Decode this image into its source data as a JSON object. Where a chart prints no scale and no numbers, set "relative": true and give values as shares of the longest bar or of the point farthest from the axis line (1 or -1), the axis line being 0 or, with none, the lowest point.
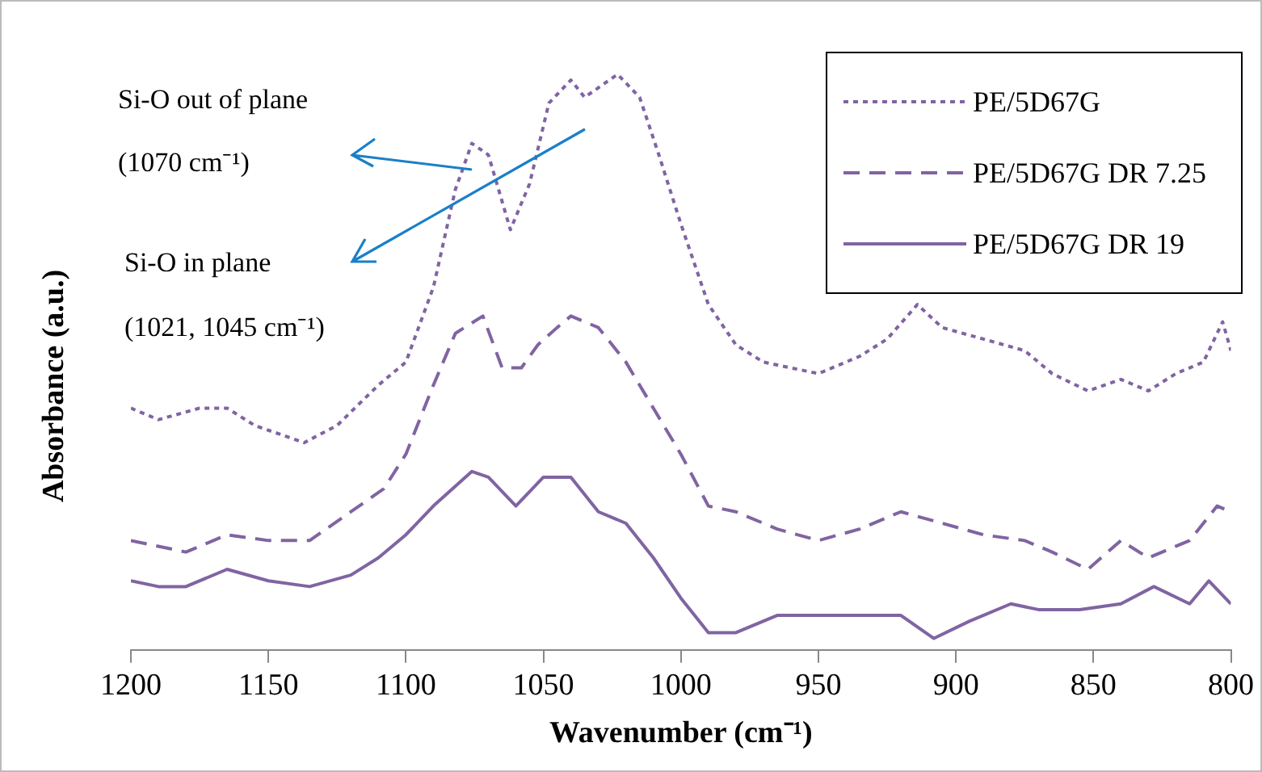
{
  "chart_data": {
    "type": "line",
    "relative": true,
    "xlabel": "Wavenumber (cm⁻¹)",
    "ylabel": "Absorbance (a.u.)",
    "xlim": [
      1200,
      800
    ],
    "xticks": [
      1200,
      1150,
      1100,
      1050,
      1000,
      950,
      900,
      850,
      800
    ],
    "grid": false,
    "marker": "none",
    "legend": "top right",
    "annotations": [
      "Si-O out of plane",
      "(1070 cm⁻¹)",
      "Si-O in plane",
      "(1021, 1045 cm⁻¹)"
    ],
    "series": [
      {
        "name": "PE/5D67G",
        "color": "#8064a2",
        "line_style": "dotted",
        "x": [
          1200,
          1190,
          1175,
          1165,
          1155,
          1137,
          1125,
          1110,
          1100,
          1090,
          1082,
          1076,
          1070,
          1062,
          1055,
          1048,
          1040,
          1035,
          1023,
          1015,
          1008,
          1000,
          990,
          980,
          970,
          960,
          950,
          935,
          925,
          914,
          905,
          890,
          875,
          865,
          852,
          840,
          830,
          820,
          810,
          803,
          800
        ],
        "values": [
          0.42,
          0.4,
          0.42,
          0.42,
          0.39,
          0.36,
          0.39,
          0.46,
          0.5,
          0.63,
          0.8,
          0.88,
          0.86,
          0.73,
          0.81,
          0.95,
          0.99,
          0.96,
          1.0,
          0.96,
          0.86,
          0.74,
          0.6,
          0.53,
          0.5,
          0.49,
          0.48,
          0.51,
          0.54,
          0.6,
          0.56,
          0.54,
          0.52,
          0.48,
          0.45,
          0.47,
          0.45,
          0.48,
          0.5,
          0.57,
          0.52
        ]
      },
      {
        "name": "PE/5D67G DR 7.25",
        "color": "#8064a2",
        "line_style": "dashed",
        "x": [
          1200,
          1190,
          1180,
          1165,
          1150,
          1135,
          1120,
          1108,
          1100,
          1090,
          1082,
          1072,
          1065,
          1058,
          1052,
          1045,
          1040,
          1030,
          1020,
          1010,
          1000,
          990,
          980,
          965,
          950,
          935,
          920,
          905,
          890,
          875,
          865,
          852,
          840,
          830,
          815,
          805,
          800
        ],
        "values": [
          0.19,
          0.18,
          0.17,
          0.2,
          0.19,
          0.19,
          0.24,
          0.28,
          0.34,
          0.46,
          0.55,
          0.58,
          0.49,
          0.49,
          0.53,
          0.56,
          0.58,
          0.56,
          0.5,
          0.42,
          0.34,
          0.25,
          0.24,
          0.21,
          0.19,
          0.21,
          0.24,
          0.22,
          0.2,
          0.19,
          0.17,
          0.14,
          0.19,
          0.16,
          0.19,
          0.25,
          0.24
        ]
      },
      {
        "name": "PE/5D67G DR 19",
        "color": "#8064a2",
        "line_style": "solid",
        "x": [
          1200,
          1190,
          1180,
          1165,
          1150,
          1135,
          1120,
          1110,
          1100,
          1090,
          1076,
          1070,
          1060,
          1050,
          1040,
          1030,
          1020,
          1010,
          1000,
          990,
          980,
          965,
          950,
          935,
          920,
          908,
          895,
          880,
          870,
          855,
          840,
          828,
          815,
          808,
          800
        ],
        "values": [
          0.12,
          0.11,
          0.11,
          0.14,
          0.12,
          0.11,
          0.13,
          0.16,
          0.2,
          0.25,
          0.31,
          0.3,
          0.25,
          0.3,
          0.3,
          0.24,
          0.22,
          0.16,
          0.09,
          0.03,
          0.03,
          0.06,
          0.06,
          0.06,
          0.06,
          0.02,
          0.05,
          0.08,
          0.07,
          0.07,
          0.08,
          0.11,
          0.08,
          0.12,
          0.08
        ]
      }
    ]
  }
}
